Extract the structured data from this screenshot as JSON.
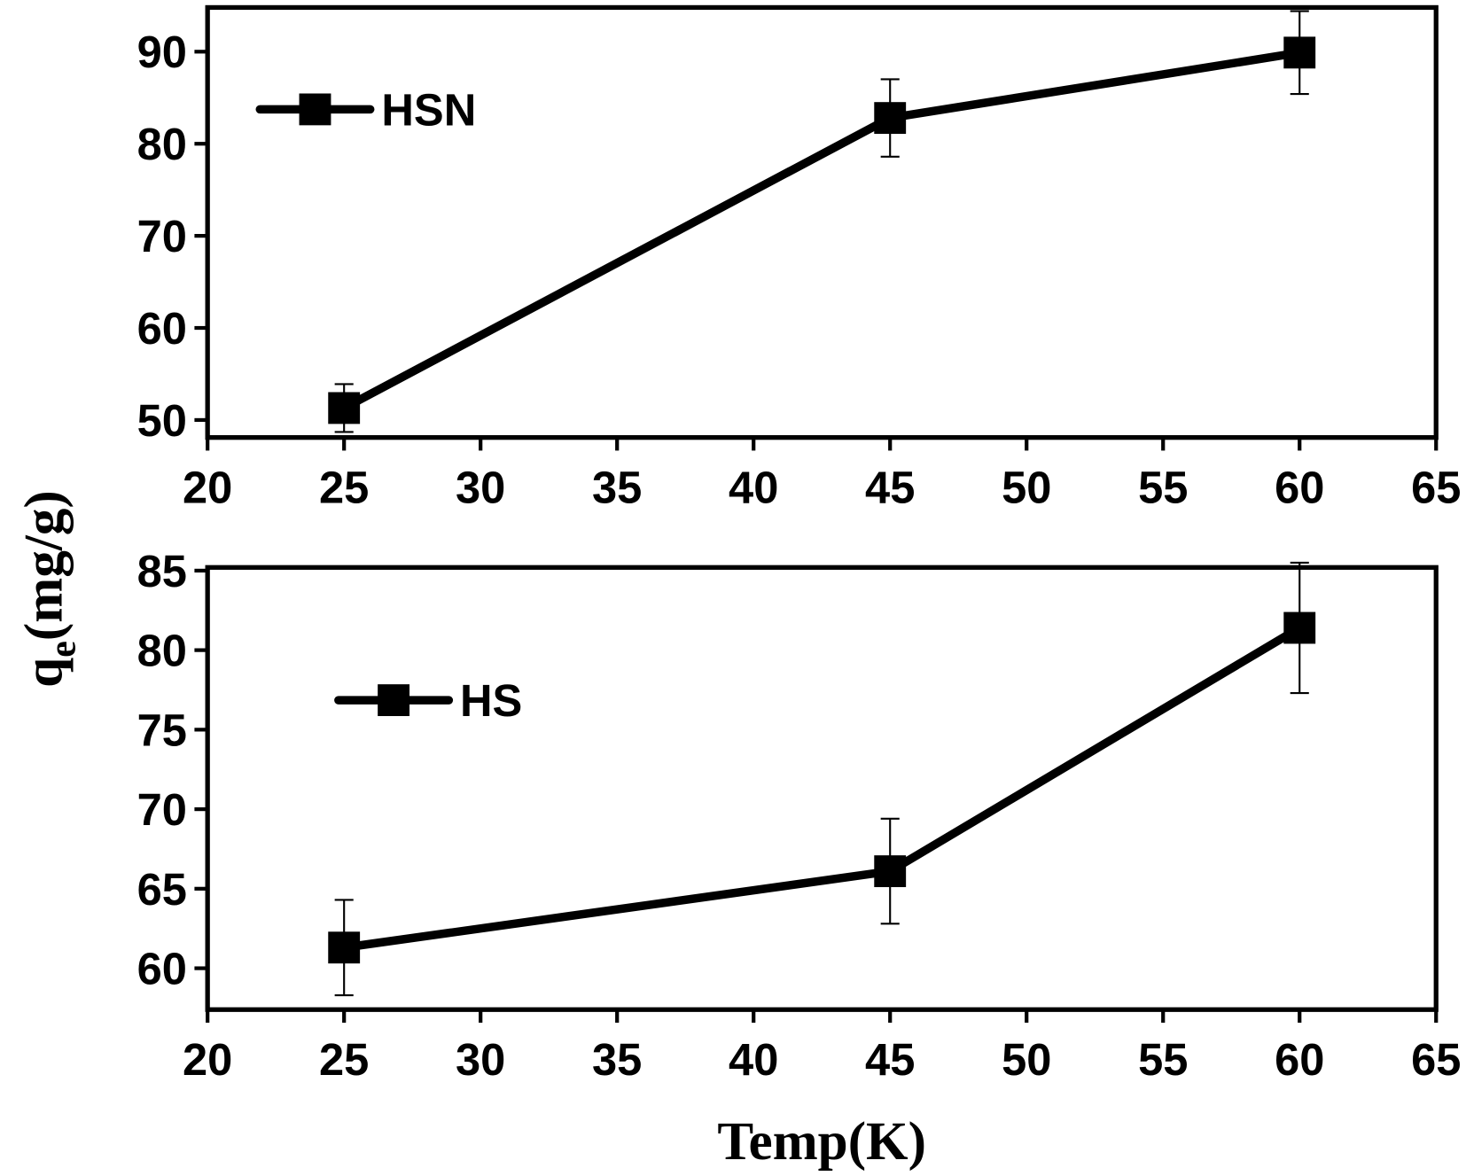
{
  "chart_data": [
    {
      "type": "line",
      "categories_are_numeric": true,
      "x": [
        25,
        45,
        60
      ],
      "series": [
        {
          "name": "HSN",
          "color": "#000000",
          "values": [
            51.3,
            82.8,
            89.9
          ],
          "errors": [
            2.6,
            4.2,
            4.5
          ]
        }
      ],
      "xlim": [
        20,
        65
      ],
      "xticks": [
        20,
        25,
        30,
        35,
        40,
        45,
        50,
        55,
        60,
        65
      ],
      "ylim": [
        48.1,
        94.8
      ],
      "yticks": [
        50,
        60,
        70,
        80,
        90
      ],
      "legend": "top-left",
      "ylabel": {
        "main": "q",
        "sub": "e",
        "unit": "(mg/g)"
      }
    },
    {
      "type": "line",
      "x": [
        25,
        45,
        60
      ],
      "series": [
        {
          "name": "HS",
          "color": "#000000",
          "values": [
            61.3,
            66.1,
            81.4
          ],
          "errors": [
            3.0,
            3.3,
            4.1
          ]
        }
      ],
      "xlim": [
        20,
        65
      ],
      "xticks": [
        20,
        25,
        30,
        35,
        40,
        45,
        50,
        55,
        60,
        65
      ],
      "ylim": [
        57.4,
        85.2
      ],
      "yticks": [
        60,
        65,
        70,
        75,
        80,
        85
      ],
      "legend": "top-left",
      "xlabel": "Temp(K)"
    }
  ]
}
